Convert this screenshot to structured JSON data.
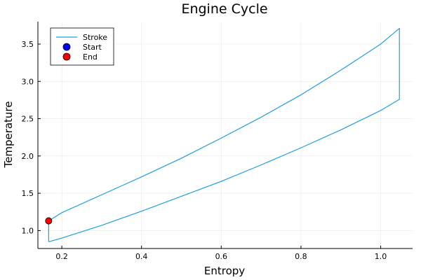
{
  "chart_data": {
    "type": "line",
    "title": "Engine Cycle",
    "xlabel": "Entropy",
    "ylabel": "Temperature",
    "xlim": [
      0.14,
      1.08
    ],
    "ylim": [
      0.76,
      3.8
    ],
    "xticks": [
      0.2,
      0.4,
      0.6,
      0.8,
      1.0
    ],
    "xtick_labels": [
      "0.2",
      "0.4",
      "0.6",
      "0.8",
      "1.0"
    ],
    "yticks": [
      1.0,
      1.5,
      2.0,
      2.5,
      3.0,
      3.5
    ],
    "ytick_labels": [
      "1.0",
      "1.5",
      "2.0",
      "2.5",
      "3.0",
      "3.5"
    ],
    "grid": true,
    "legend_position": "top-left",
    "series": [
      {
        "name": "Stroke",
        "type": "line",
        "color": "#1f9ee0",
        "x": [
          0.167,
          0.2,
          0.3,
          0.4,
          0.5,
          0.6,
          0.7,
          0.8,
          0.9,
          1.0,
          1.047,
          1.047,
          1.0,
          0.9,
          0.8,
          0.7,
          0.6,
          0.5,
          0.4,
          0.3,
          0.2,
          0.167,
          0.167
        ],
        "y": [
          0.85,
          0.9,
          1.07,
          1.26,
          1.46,
          1.66,
          1.88,
          2.11,
          2.35,
          2.61,
          2.76,
          3.71,
          3.5,
          3.15,
          2.82,
          2.52,
          2.24,
          1.97,
          1.72,
          1.48,
          1.24,
          1.13,
          0.85
        ]
      },
      {
        "name": "Start",
        "type": "scatter",
        "color": "#0000ff",
        "x": [
          0.167
        ],
        "y": [
          1.13
        ]
      },
      {
        "name": "End",
        "type": "scatter",
        "color": "#ff0000",
        "x": [
          0.167
        ],
        "y": [
          1.13
        ]
      }
    ]
  }
}
